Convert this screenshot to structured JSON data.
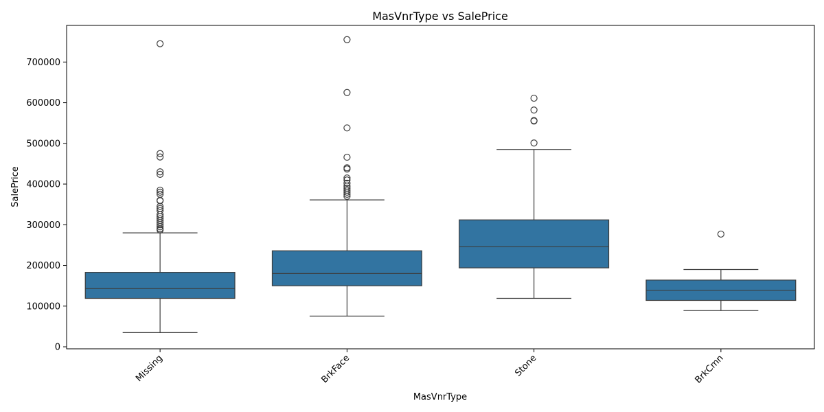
{
  "chart_data": {
    "type": "box",
    "title": "MasVnrType vs SalePrice",
    "xlabel": "MasVnrType",
    "ylabel": "SalePrice",
    "ylim": [
      -5000,
      790000
    ],
    "yticks": [
      0,
      100000,
      200000,
      300000,
      400000,
      500000,
      600000,
      700000
    ],
    "ytick_labels": [
      "0",
      "100000",
      "200000",
      "300000",
      "400000",
      "500000",
      "600000",
      "700000"
    ],
    "grid": false,
    "box_color": "#3274a1",
    "line_color": "#3d3d3d",
    "categories": [
      {
        "name": "Missing",
        "whisker_low": 34900,
        "q1": 119000,
        "median": 143000,
        "q3": 183000,
        "whisker_high": 280000,
        "outliers": [
          745000,
          475000,
          466500,
          430000,
          424000,
          385000,
          380000,
          375000,
          360000,
          359000,
          345000,
          340000,
          335000,
          325000,
          320000,
          315000,
          310000,
          305000,
          300000,
          295000,
          290000,
          287000
        ]
      },
      {
        "name": "BrkFace",
        "whisker_low": 75500,
        "q1": 150000,
        "median": 180000,
        "q3": 236000,
        "whisker_high": 361000,
        "outliers": [
          755000,
          625000,
          538000,
          466000,
          440000,
          437000,
          415000,
          410000,
          402000,
          395000,
          390000,
          385000,
          380000,
          375000,
          370000
        ]
      },
      {
        "name": "Stone",
        "whisker_low": 119000,
        "q1": 194000,
        "median": 246000,
        "q3": 312000,
        "whisker_high": 485000,
        "outliers": [
          611000,
          582000,
          556000,
          555000,
          501000
        ]
      },
      {
        "name": "BrkCmn",
        "whisker_low": 89000,
        "q1": 114000,
        "median": 139000,
        "q3": 164000,
        "whisker_high": 190000,
        "outliers": [
          277000
        ]
      }
    ]
  }
}
